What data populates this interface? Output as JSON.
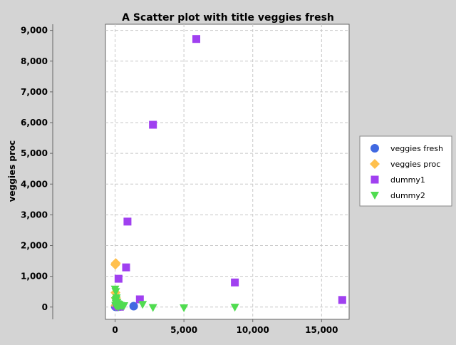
{
  "chart_data": {
    "type": "scatter",
    "title": "A Scatter plot with title veggies fresh",
    "xlabel": "",
    "ylabel": "veggies proc",
    "xlim": [
      -700,
      17000
    ],
    "ylim": [
      -400,
      9200
    ],
    "xticks": [
      0,
      5000,
      10000,
      15000
    ],
    "xtick_labels": [
      "0",
      "5,000",
      "10,000",
      "15,000"
    ],
    "yticks": [
      0,
      1000,
      2000,
      3000,
      4000,
      5000,
      6000,
      7000,
      8000,
      9000
    ],
    "ytick_labels": [
      "0",
      "1,000",
      "2,000",
      "3,000",
      "4,000",
      "5,000",
      "6,000",
      "7,000",
      "8,000",
      "9,000"
    ],
    "grid": true,
    "legend_position": "right",
    "series": [
      {
        "name": "veggies fresh",
        "marker": "circle",
        "color": "#4169e1",
        "points": [
          [
            20,
            10
          ],
          [
            80,
            20
          ],
          [
            150,
            5
          ],
          [
            200,
            30
          ],
          [
            300,
            15
          ],
          [
            350,
            25
          ],
          [
            1350,
            30
          ],
          [
            50,
            60
          ],
          [
            250,
            40
          ]
        ]
      },
      {
        "name": "veggies proc",
        "marker": "diamond",
        "color": "#ffc04d",
        "points": [
          [
            50,
            1430
          ],
          [
            20,
            1380
          ],
          [
            30,
            470
          ],
          [
            60,
            300
          ],
          [
            120,
            150
          ],
          [
            40,
            50
          ]
        ]
      },
      {
        "name": "dummy1",
        "marker": "square",
        "color": "#a040f0",
        "points": [
          [
            5900,
            8720
          ],
          [
            2750,
            5930
          ],
          [
            900,
            2780
          ],
          [
            800,
            1290
          ],
          [
            250,
            920
          ],
          [
            8700,
            800
          ],
          [
            16500,
            230
          ],
          [
            1800,
            250
          ],
          [
            100,
            30
          ],
          [
            350,
            10
          ]
        ]
      },
      {
        "name": "dummy2",
        "marker": "triangle-down",
        "color": "#50dc50",
        "points": [
          [
            0,
            580
          ],
          [
            50,
            500
          ],
          [
            100,
            300
          ],
          [
            20,
            200
          ],
          [
            150,
            150
          ],
          [
            200,
            100
          ],
          [
            80,
            250
          ],
          [
            300,
            80
          ],
          [
            400,
            50
          ],
          [
            500,
            20
          ],
          [
            650,
            40
          ],
          [
            2000,
            80
          ],
          [
            2750,
            -20
          ],
          [
            5000,
            -30
          ],
          [
            8700,
            -10
          ],
          [
            120,
            30
          ],
          [
            60,
            120
          ],
          [
            250,
            0
          ],
          [
            30,
            50
          ],
          [
            180,
            70
          ]
        ]
      }
    ]
  }
}
